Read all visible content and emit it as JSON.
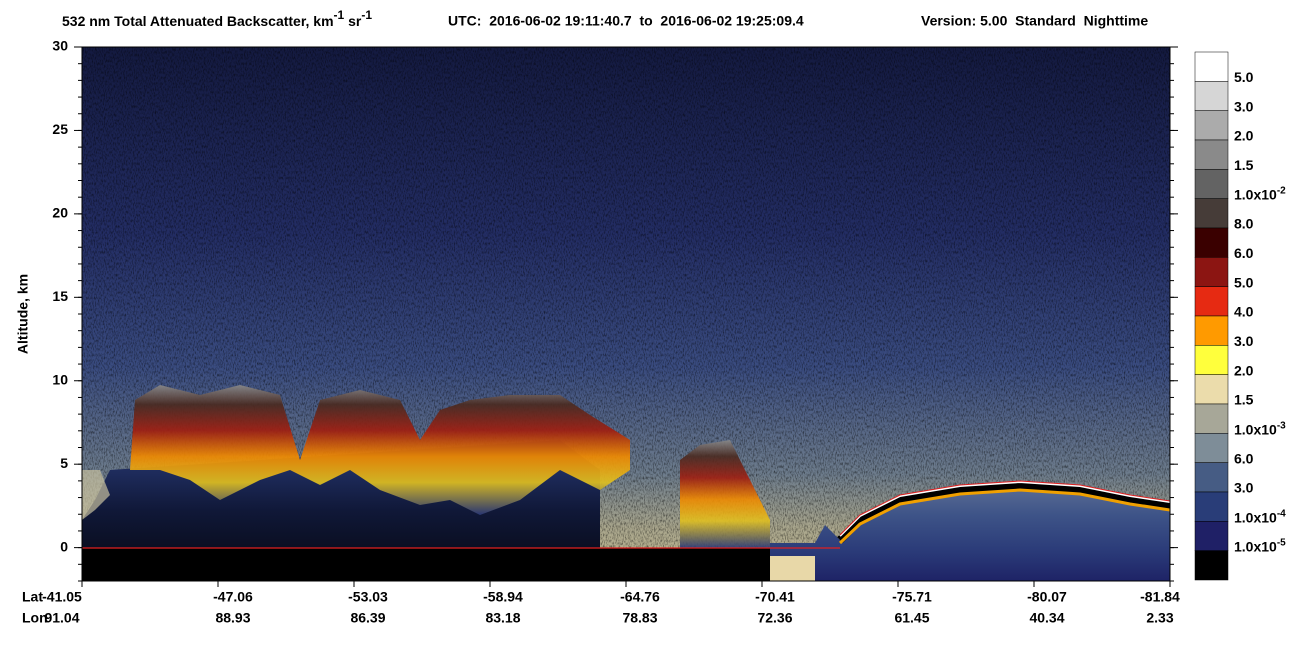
{
  "chart_data": {
    "type": "curtain",
    "title_parts": [
      "532 nm Total Attenuated Backscatter, km",
      "-1",
      " sr",
      "-1"
    ],
    "time_range": "UTC:  2016-06-02 19:11:40.7  to  2016-06-02 19:25:09.4",
    "version": "Version: 5.00  Standard  Nighttime",
    "y_label": "Altitude, km",
    "ylim": [
      -2,
      30
    ],
    "yticks": [
      0,
      5,
      10,
      15,
      20,
      25,
      30
    ],
    "lat_label": "Lat",
    "lon_label": "Lon",
    "lat": [
      "-41.05",
      "-47.06",
      "-53.03",
      "-58.94",
      "-64.76",
      "-70.41",
      "-75.71",
      "-80.07",
      "-81.84"
    ],
    "lon": [
      "91.04",
      "88.93",
      "86.39",
      "83.18",
      "78.83",
      "72.36",
      "61.45",
      "40.34",
      "2.33"
    ],
    "colorbar": {
      "colors": [
        "#ffffff",
        "#d6d6d6",
        "#ababab",
        "#8a8a8a",
        "#636363",
        "#463c38",
        "#3a0000",
        "#8c1512",
        "#e62a12",
        "#ff9a00",
        "#ffff3c",
        "#ebdcab",
        "#a7a798",
        "#7e8d98",
        "#465c84",
        "#293d78",
        "#1f2066",
        "#000000"
      ],
      "labels": [
        "5.0",
        "3.0",
        "2.0",
        "1.5",
        {
          "text": "1.0x10",
          "exp": "-2"
        },
        "8.0",
        "6.0",
        "5.0",
        "4.0",
        "3.0",
        "2.0",
        "1.5",
        {
          "text": "1.0x10",
          "exp": "-3"
        },
        "6.0",
        "3.0",
        {
          "text": "1.0x10",
          "exp": "-4"
        },
        {
          "text": "1.0x10",
          "exp": "-5"
        }
      ]
    }
  }
}
